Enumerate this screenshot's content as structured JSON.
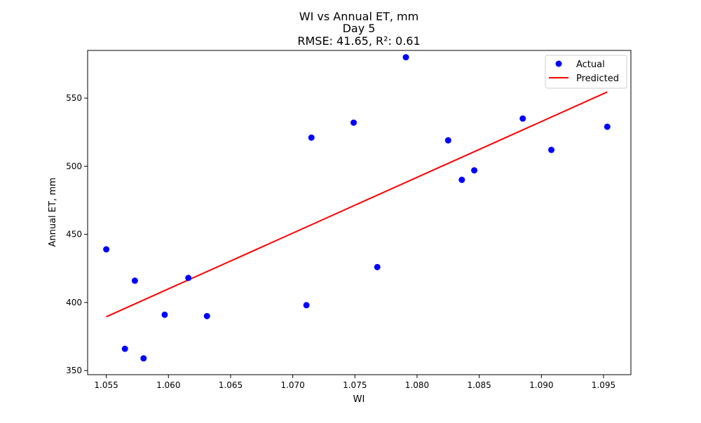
{
  "chart_data": {
    "type": "scatter",
    "title_lines": [
      "WI vs Annual ET, mm",
      "Day 5",
      "RMSE: 41.65, R²: 0.61"
    ],
    "xlabel": "WI",
    "ylabel": "Annual ET, mm",
    "xlim": [
      1.0535,
      1.0972
    ],
    "ylim": [
      347,
      585
    ],
    "xticks": [
      1.055,
      1.06,
      1.065,
      1.07,
      1.075,
      1.08,
      1.085,
      1.09,
      1.095
    ],
    "xtick_labels": [
      "1.055",
      "1.060",
      "1.065",
      "1.070",
      "1.075",
      "1.080",
      "1.085",
      "1.090",
      "1.095"
    ],
    "yticks": [
      350,
      400,
      450,
      500,
      550
    ],
    "ytick_labels": [
      "350",
      "400",
      "450",
      "500",
      "550"
    ],
    "grid": false,
    "legend_position": "top-right",
    "series": [
      {
        "name": "Actual",
        "kind": "scatter",
        "color": "#0000ff",
        "points": [
          {
            "x": 1.055,
            "y": 439
          },
          {
            "x": 1.0565,
            "y": 366
          },
          {
            "x": 1.0573,
            "y": 416
          },
          {
            "x": 1.058,
            "y": 359
          },
          {
            "x": 1.0597,
            "y": 391
          },
          {
            "x": 1.0616,
            "y": 418
          },
          {
            "x": 1.0631,
            "y": 390
          },
          {
            "x": 1.0711,
            "y": 398
          },
          {
            "x": 1.0715,
            "y": 521
          },
          {
            "x": 1.0749,
            "y": 532
          },
          {
            "x": 1.0768,
            "y": 426
          },
          {
            "x": 1.0791,
            "y": 580
          },
          {
            "x": 1.0825,
            "y": 519
          },
          {
            "x": 1.0836,
            "y": 490
          },
          {
            "x": 1.0846,
            "y": 497
          },
          {
            "x": 1.0885,
            "y": 535
          },
          {
            "x": 1.0908,
            "y": 512
          },
          {
            "x": 1.0953,
            "y": 529
          }
        ]
      },
      {
        "name": "Predicted",
        "kind": "line",
        "color": "#ff0000",
        "points": [
          {
            "x": 1.055,
            "y": 389.5
          },
          {
            "x": 1.0953,
            "y": 554.5
          }
        ]
      }
    ]
  }
}
